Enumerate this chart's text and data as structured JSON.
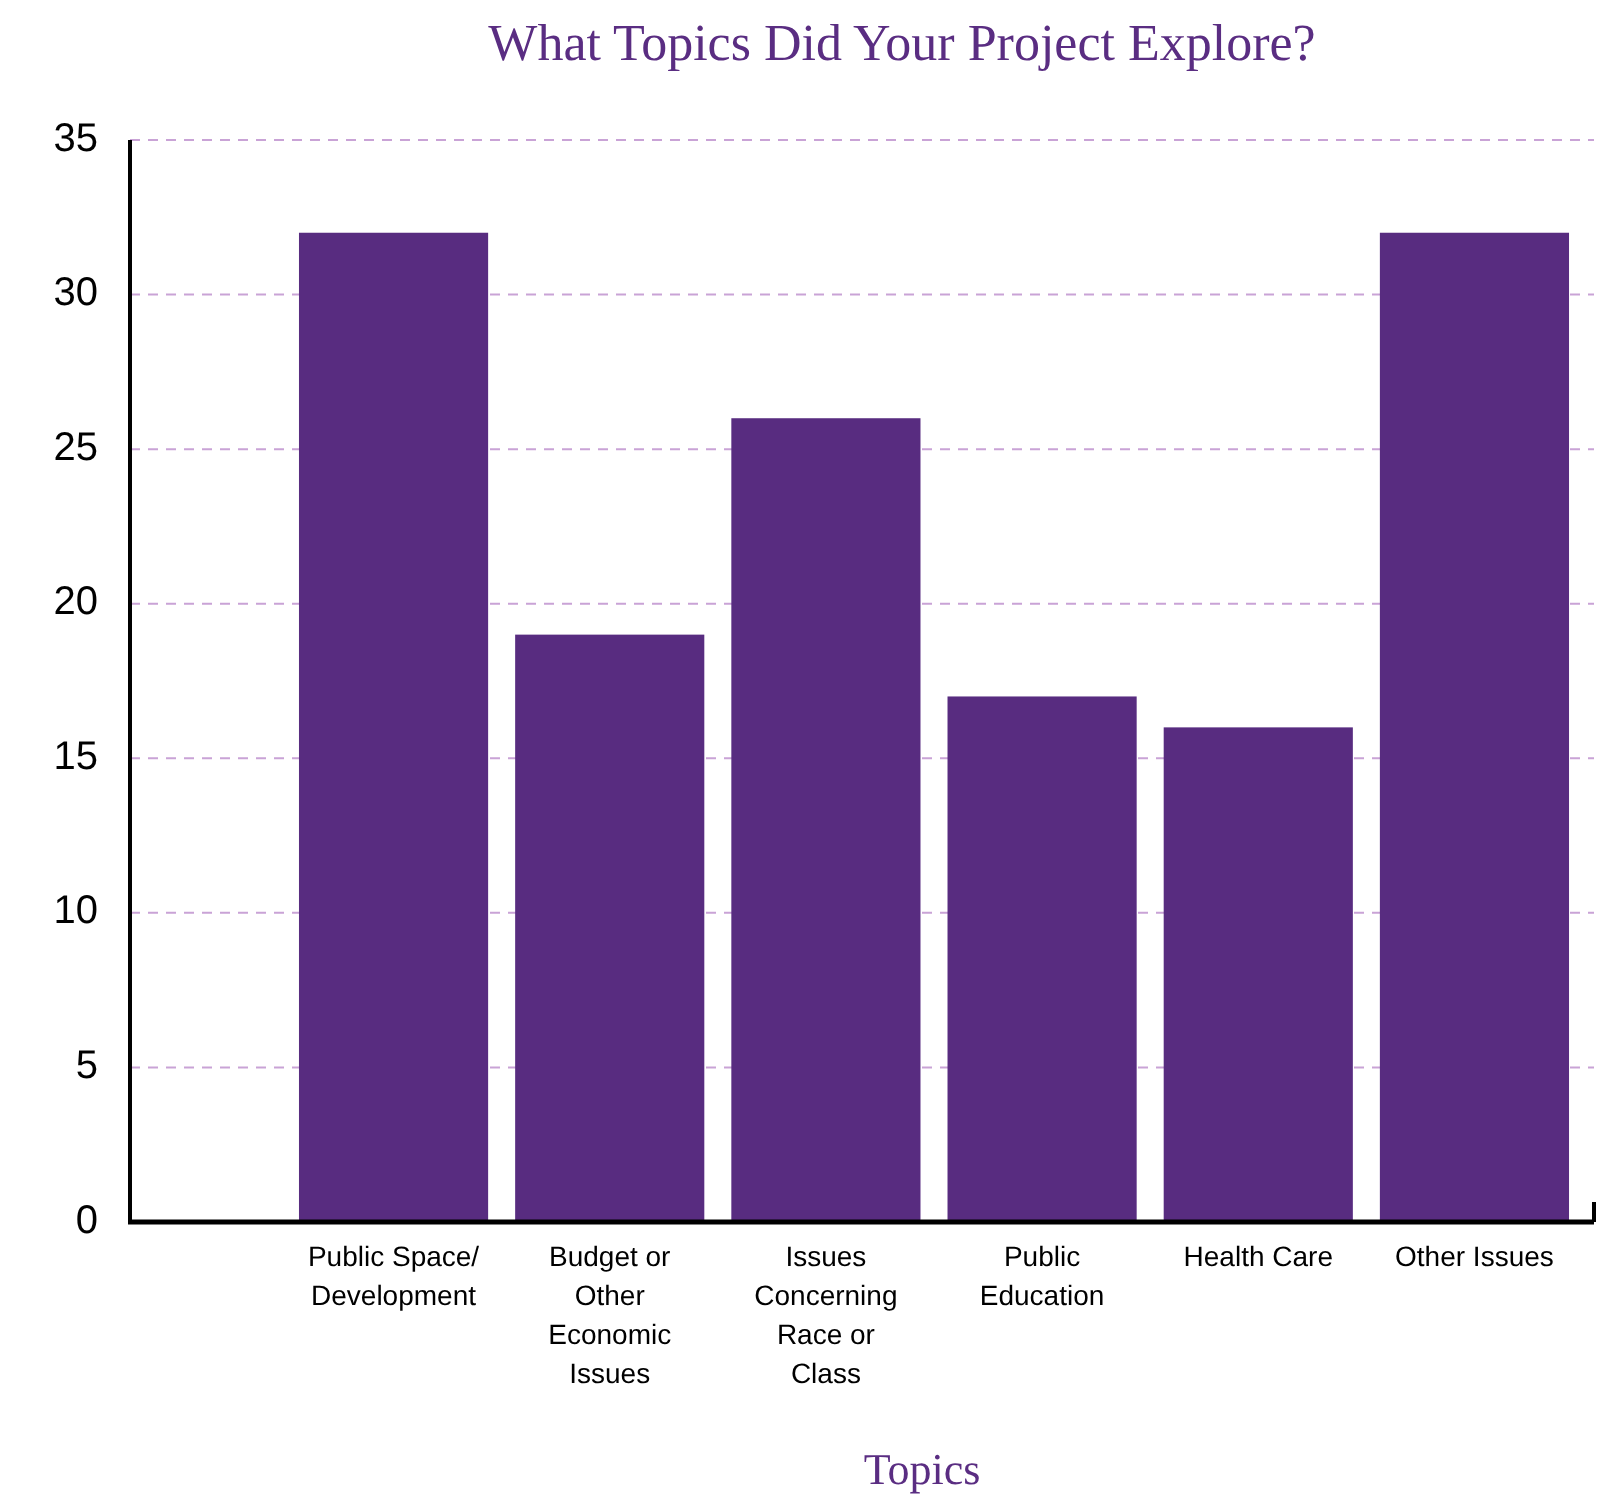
{
  "chart_data": {
    "type": "bar",
    "title": "What Topics Did Your Project Explore?",
    "xlabel": "Topics",
    "categories": [
      "Public Space/ Development",
      "Budget or Other Economic Issues",
      "Issues Concerning Race or Class",
      "Public Education",
      "Health Care",
      "Other Issues"
    ],
    "values": [
      32,
      19,
      26,
      17,
      16,
      32
    ],
    "color": "#582c80",
    "ylim": [
      0,
      35
    ],
    "yticks": [
      0,
      5,
      10,
      15,
      20,
      25,
      30,
      35
    ],
    "grid": "y"
  }
}
